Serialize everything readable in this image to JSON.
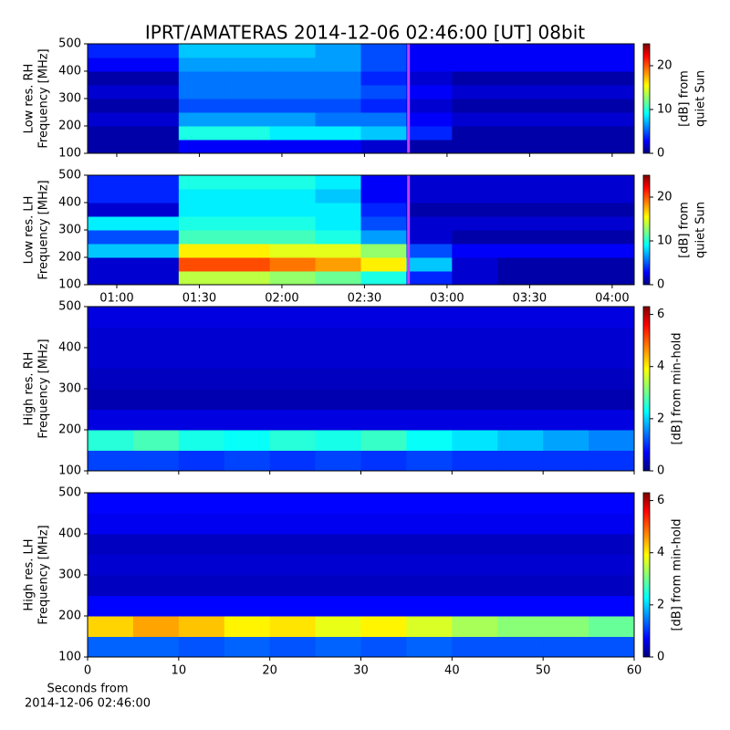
{
  "chart_data": [
    {
      "type": "heatmap",
      "title": "IPRT/AMATERAS 2014-12-06 02:46:00 [UT]   08bit",
      "ylabel": [
        "Low res. RH",
        "Frequency [MHz]"
      ],
      "clabel": [
        "[dB] from",
        "quiet Sun"
      ],
      "xlim": [
        49.4,
        248
      ],
      "ylim": [
        100,
        500
      ],
      "yticks": [
        100,
        200,
        300,
        400,
        500
      ],
      "clim": [
        0,
        25
      ],
      "cticks": [
        0,
        10,
        20
      ],
      "cursor": 166,
      "cursor_color": "#c040ff",
      "z": [
        [
          1,
          1,
          3,
          3,
          3,
          3,
          2,
          1,
          1,
          1,
          1,
          1
        ],
        [
          1,
          1,
          10,
          10,
          9,
          9,
          8,
          4,
          1,
          1,
          1,
          1
        ],
        [
          2,
          2,
          7,
          7,
          7,
          6,
          6,
          3,
          2,
          2,
          2,
          2
        ],
        [
          1,
          1,
          5,
          5,
          5,
          5,
          4,
          2,
          1,
          1,
          1,
          1
        ],
        [
          2,
          2,
          6,
          6,
          6,
          6,
          5,
          3,
          2,
          2,
          2,
          2
        ],
        [
          1,
          1,
          6,
          6,
          6,
          6,
          4,
          2,
          1,
          1,
          1,
          1
        ],
        [
          3,
          3,
          7,
          7,
          7,
          7,
          5,
          3,
          3,
          3,
          3,
          3
        ],
        [
          4,
          4,
          8,
          8,
          8,
          7,
          5,
          3,
          3,
          3,
          3,
          3
        ]
      ]
    },
    {
      "type": "heatmap",
      "ylabel": [
        "Low res. LH",
        "Frequency [MHz]"
      ],
      "clabel": [
        "[dB] from",
        "quiet Sun"
      ],
      "xlim": [
        49.4,
        248
      ],
      "ylim": [
        100,
        500
      ],
      "yticks": [
        100,
        200,
        300,
        400,
        500
      ],
      "xticks": [
        {
          "value": 60,
          "label": "01:00"
        },
        {
          "value": 90,
          "label": "01:30"
        },
        {
          "value": 120,
          "label": "02:00"
        },
        {
          "value": 150,
          "label": "02:30"
        },
        {
          "value": 180,
          "label": "03:00"
        },
        {
          "value": 210,
          "label": "03:30"
        },
        {
          "value": 240,
          "label": "04:00"
        }
      ],
      "clim": [
        0,
        25
      ],
      "cticks": [
        0,
        10,
        20
      ],
      "cursor": 166,
      "cursor_color": "#c040ff",
      "z": [
        [
          2,
          2,
          14,
          14,
          13,
          12,
          10,
          4,
          2,
          1,
          1,
          1
        ],
        [
          2,
          2,
          20,
          20,
          19,
          18,
          16,
          8,
          2,
          1,
          1,
          1
        ],
        [
          8,
          8,
          16,
          16,
          15,
          15,
          13,
          5,
          3,
          3,
          3,
          3
        ],
        [
          5,
          5,
          11,
          11,
          11,
          10,
          7,
          2,
          1,
          1,
          1,
          1
        ],
        [
          9,
          9,
          10,
          10,
          10,
          9,
          5,
          2,
          2,
          2,
          2,
          2
        ],
        [
          2,
          2,
          9,
          9,
          9,
          9,
          4,
          1,
          1,
          1,
          1,
          1
        ],
        [
          4,
          4,
          9,
          9,
          9,
          8,
          3,
          2,
          2,
          2,
          2,
          2
        ],
        [
          4,
          4,
          10,
          10,
          10,
          9,
          3,
          2,
          2,
          2,
          2,
          2
        ]
      ]
    },
    {
      "type": "heatmap",
      "ylabel": [
        "High res. RH",
        "Frequency [MHz]"
      ],
      "clabel": [
        "[dB] from min-hold"
      ],
      "xlim": [
        0,
        60
      ],
      "ylim": [
        100,
        500
      ],
      "yticks": [
        100,
        200,
        300,
        400,
        500
      ],
      "clim": [
        0,
        6.3
      ],
      "cticks": [
        0,
        2,
        4,
        6
      ],
      "z": [
        [
          1.2,
          1.2,
          1.1,
          1.2,
          1.1,
          1.2,
          1.1,
          1.2,
          1.1,
          1.1,
          1.1,
          1.1
        ],
        [
          2.6,
          2.8,
          2.5,
          2.4,
          2.6,
          2.5,
          2.7,
          2.4,
          2.2,
          2,
          1.8,
          1.6
        ],
        [
          0.6,
          0.6,
          0.6,
          0.6,
          0.6,
          0.6,
          0.6,
          0.6,
          0.6,
          0.6,
          0.6,
          0.6
        ],
        [
          0.3,
          0.3,
          0.3,
          0.3,
          0.3,
          0.3,
          0.3,
          0.3,
          0.3,
          0.3,
          0.3,
          0.3
        ],
        [
          0.4,
          0.4,
          0.4,
          0.4,
          0.4,
          0.4,
          0.4,
          0.4,
          0.4,
          0.4,
          0.4,
          0.4
        ],
        [
          0.5,
          0.5,
          0.5,
          0.5,
          0.5,
          0.5,
          0.5,
          0.5,
          0.5,
          0.5,
          0.5,
          0.5
        ],
        [
          0.5,
          0.5,
          0.5,
          0.5,
          0.5,
          0.5,
          0.5,
          0.5,
          0.5,
          0.5,
          0.5,
          0.5
        ],
        [
          0.6,
          0.6,
          0.6,
          0.6,
          0.6,
          0.6,
          0.6,
          0.6,
          0.6,
          0.6,
          0.6,
          0.6
        ]
      ]
    },
    {
      "type": "heatmap",
      "ylabel": [
        "High res. LH",
        "Frequency [MHz]"
      ],
      "clabel": [
        "[dB] from min-hold"
      ],
      "xlabel": [
        "Seconds from",
        "2014-12-06 02:46:00"
      ],
      "xlim": [
        0,
        60
      ],
      "ylim": [
        100,
        500
      ],
      "yticks": [
        100,
        200,
        300,
        400,
        500
      ],
      "xticks": [
        0,
        10,
        20,
        30,
        40,
        50,
        60
      ],
      "clim": [
        0,
        6.3
      ],
      "cticks": [
        0,
        2,
        4,
        6
      ],
      "z": [
        [
          1.4,
          1.4,
          1.3,
          1.4,
          1.3,
          1.4,
          1.3,
          1.4,
          1.3,
          1.3,
          1.3,
          1.3
        ],
        [
          4.2,
          4.5,
          4.3,
          4,
          4.1,
          3.8,
          4,
          3.7,
          3.4,
          3.2,
          3.2,
          3
        ],
        [
          0.8,
          0.8,
          0.8,
          0.8,
          0.8,
          0.8,
          0.8,
          0.8,
          0.8,
          0.8,
          0.8,
          0.8
        ],
        [
          0.4,
          0.4,
          0.4,
          0.4,
          0.4,
          0.4,
          0.4,
          0.4,
          0.4,
          0.4,
          0.4,
          0.4
        ],
        [
          0.5,
          0.5,
          0.5,
          0.5,
          0.5,
          0.5,
          0.5,
          0.5,
          0.5,
          0.5,
          0.5,
          0.5
        ],
        [
          0.4,
          0.4,
          0.4,
          0.4,
          0.4,
          0.4,
          0.4,
          0.4,
          0.4,
          0.4,
          0.4,
          0.4
        ],
        [
          0.7,
          0.7,
          0.7,
          0.7,
          0.7,
          0.7,
          0.7,
          0.7,
          0.7,
          0.7,
          0.7,
          0.7
        ],
        [
          0.8,
          0.8,
          0.8,
          0.8,
          0.8,
          0.8,
          0.8,
          0.8,
          0.8,
          0.8,
          0.8,
          0.8
        ]
      ]
    }
  ]
}
